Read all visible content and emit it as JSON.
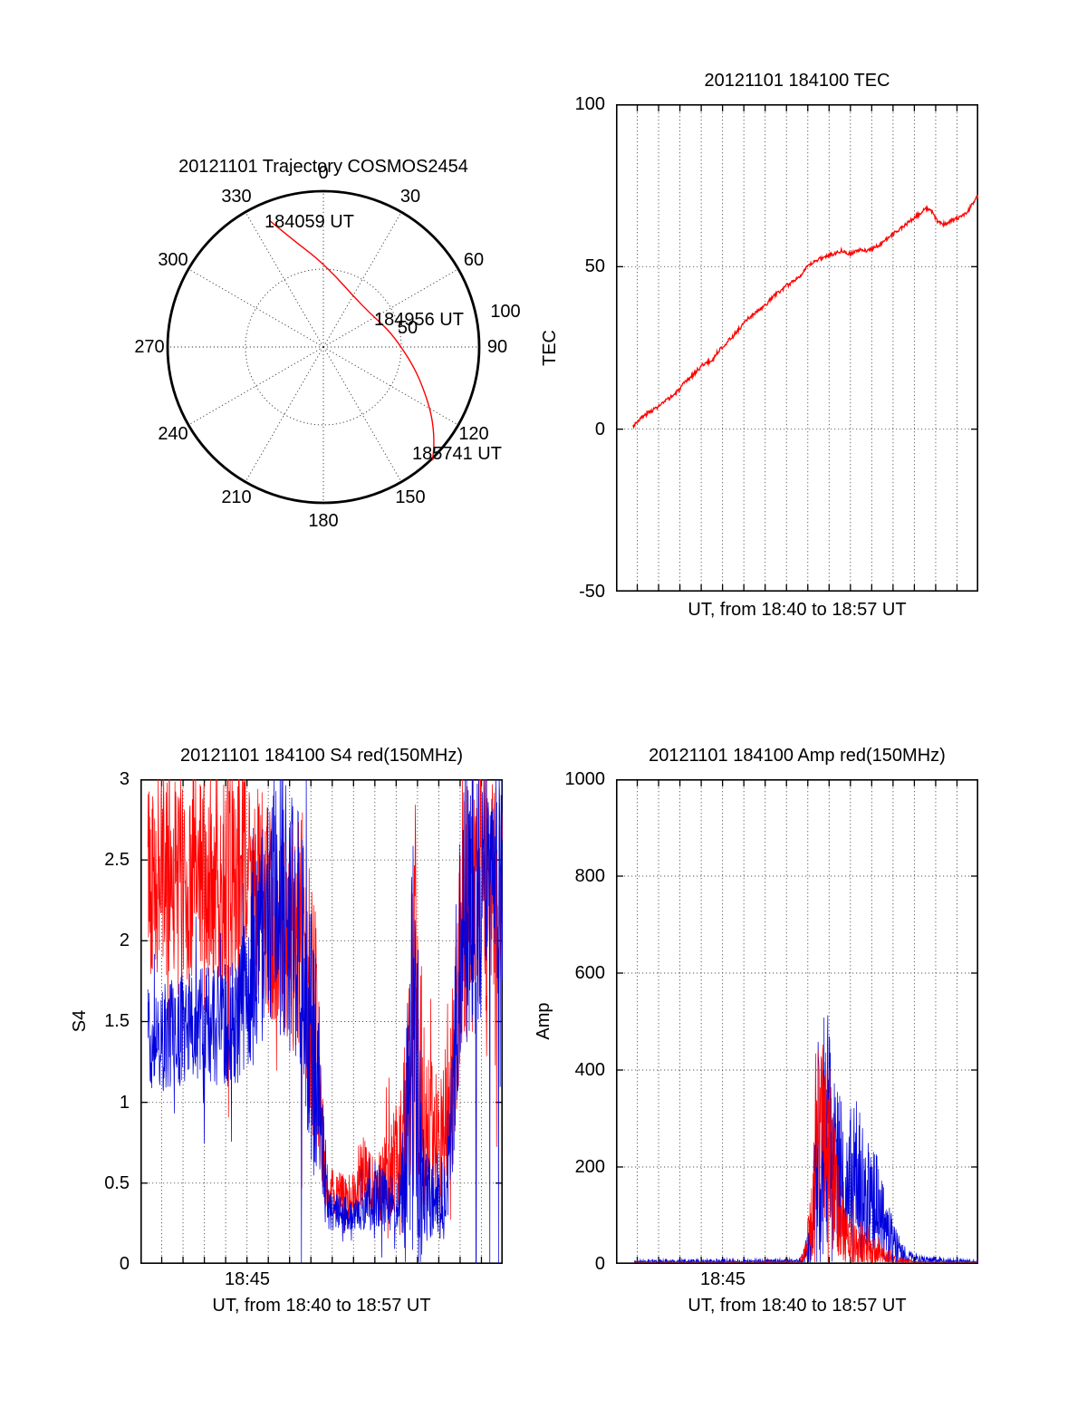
{
  "figure": {
    "background": "#ffffff"
  },
  "chart_data": [
    {
      "type": "polar-trajectory",
      "title": "20121101 Trajectory COSMOS2454",
      "azimuth_tick_labels": [
        "0",
        "30",
        "60",
        "90",
        "120",
        "150",
        "180",
        "210",
        "240",
        "270",
        "300",
        "330"
      ],
      "radial_tick_labels": [
        "50",
        "100"
      ],
      "annotations": [
        "184059 UT",
        "184956 UT",
        "185741 UT"
      ],
      "line_color": "#ff0000",
      "points_az_deg_r": [
        [
          337,
          0.88
        ],
        [
          345,
          0.7
        ],
        [
          355,
          0.58
        ],
        [
          10,
          0.46
        ],
        [
          30,
          0.38
        ],
        [
          55,
          0.37
        ],
        [
          75,
          0.43
        ],
        [
          90,
          0.5
        ],
        [
          103,
          0.6
        ],
        [
          113,
          0.7
        ],
        [
          122,
          0.82
        ],
        [
          130,
          0.93
        ],
        [
          136,
          1.01
        ]
      ]
    },
    {
      "type": "line",
      "title": "20121101 184100 TEC",
      "ylabel": "TEC",
      "xlabel": "UT, from 18:40 to 18:57 UT",
      "ylim": [
        -50,
        100
      ],
      "yticks": [
        100,
        50,
        0,
        -50
      ],
      "ytick_labels": [
        "100",
        "50",
        "0",
        "-50"
      ],
      "x_axis": {
        "start": "18:40",
        "end": "18:57",
        "span_minutes": 17
      },
      "grid": true,
      "line_color": "#ff0000",
      "points": [
        [
          0.8,
          1
        ],
        [
          1.1,
          3
        ],
        [
          1.5,
          5
        ],
        [
          2,
          7
        ],
        [
          2.4,
          9
        ],
        [
          2.8,
          11
        ],
        [
          3.2,
          14
        ],
        [
          3.5,
          16
        ],
        [
          3.8,
          18
        ],
        [
          4.1,
          20
        ],
        [
          4.5,
          21
        ],
        [
          4.8,
          24
        ],
        [
          5.1,
          26
        ],
        [
          5.4,
          28
        ],
        [
          5.8,
          31
        ],
        [
          6.2,
          34
        ],
        [
          6.6,
          36
        ],
        [
          7,
          38
        ],
        [
          7.4,
          41
        ],
        [
          7.8,
          43
        ],
        [
          8.2,
          45
        ],
        [
          8.6,
          47
        ],
        [
          9,
          50
        ],
        [
          9.4,
          52
        ],
        [
          9.8,
          53
        ],
        [
          10.2,
          54
        ],
        [
          10.6,
          55
        ],
        [
          11,
          54
        ],
        [
          11.4,
          55
        ],
        [
          11.8,
          55
        ],
        [
          12.2,
          56
        ],
        [
          12.6,
          58
        ],
        [
          13,
          60
        ],
        [
          13.4,
          62
        ],
        [
          13.8,
          64
        ],
        [
          14.2,
          66
        ],
        [
          14.5,
          68
        ],
        [
          14.8,
          67
        ],
        [
          15.1,
          64
        ],
        [
          15.4,
          63
        ],
        [
          15.7,
          64
        ],
        [
          16.1,
          65
        ],
        [
          16.5,
          67
        ],
        [
          16.8,
          70
        ],
        [
          17,
          72
        ]
      ]
    },
    {
      "type": "line",
      "title": "20121101 184100 S4 red(150MHz)",
      "ylabel": "S4",
      "xlabel": "UT, from 18:40 to 18:57 UT",
      "ylim": [
        0,
        3
      ],
      "yticks": [
        3,
        2.5,
        2,
        1.5,
        1,
        0.5,
        0
      ],
      "ytick_labels": [
        "3",
        "2.5",
        "2",
        "1.5",
        "1",
        "0.5",
        "0"
      ],
      "x_axis": {
        "start": "18:40",
        "end": "18:57",
        "span_minutes": 17,
        "tick_label": "18:45",
        "tick_minute": 5
      },
      "grid": true,
      "series": [
        {
          "name": "red(150MHz)",
          "color": "#ff0000",
          "seed": 42,
          "data_start_minute": 0.35,
          "envelope_x_mean_amp": [
            [
              0,
              2.45,
              0.65
            ],
            [
              5.0,
              2.4,
              0.7
            ],
            [
              6.2,
              2.15,
              0.65
            ],
            [
              7.6,
              2.0,
              0.8
            ],
            [
              8.2,
              1.4,
              0.8
            ],
            [
              8.7,
              0.45,
              0.18
            ],
            [
              10.0,
              0.4,
              0.15
            ],
            [
              10.4,
              0.55,
              0.25
            ],
            [
              11.0,
              0.45,
              0.2
            ],
            [
              11.8,
              0.6,
              0.3
            ],
            [
              12.5,
              0.9,
              0.6
            ],
            [
              12.9,
              1.7,
              1.3
            ],
            [
              13.3,
              0.9,
              0.6
            ],
            [
              13.9,
              0.75,
              0.35
            ],
            [
              14.6,
              0.9,
              0.45
            ],
            [
              15.1,
              2.2,
              0.85
            ],
            [
              17,
              2.35,
              0.7
            ]
          ]
        },
        {
          "name": "blue",
          "color": "#0000dd",
          "seed": 77,
          "data_start_minute": 0.35,
          "envelope_x_mean_amp": [
            [
              0,
              1.4,
              0.32
            ],
            [
              4.6,
              1.5,
              0.4
            ],
            [
              5.6,
              2.0,
              0.75
            ],
            [
              6.6,
              2.2,
              0.8
            ],
            [
              7.5,
              2.0,
              0.9
            ],
            [
              8.2,
              1.2,
              0.8
            ],
            [
              8.8,
              0.33,
              0.12
            ],
            [
              10.3,
              0.3,
              0.1
            ],
            [
              11.0,
              0.42,
              0.22
            ],
            [
              12.2,
              0.35,
              0.15
            ],
            [
              12.9,
              1.4,
              1.6
            ],
            [
              13.3,
              0.45,
              0.3
            ],
            [
              14.4,
              0.4,
              0.25
            ],
            [
              15.1,
              2.2,
              0.9
            ],
            [
              17,
              2.35,
              0.75
            ]
          ],
          "dropouts": [
            7.55,
            15.75,
            16.4,
            16.8
          ]
        }
      ]
    },
    {
      "type": "line",
      "title": "20121101 184100 Amp red(150MHz)",
      "ylabel": "Amp",
      "xlabel": "UT, from 18:40 to 18:57 UT",
      "ylim": [
        0,
        1000
      ],
      "yticks": [
        1000,
        800,
        600,
        400,
        200,
        0
      ],
      "ytick_labels": [
        "1000",
        "800",
        "600",
        "400",
        "200",
        "0"
      ],
      "x_axis": {
        "start": "18:40",
        "end": "18:57",
        "span_minutes": 17,
        "tick_label": "18:45",
        "tick_minute": 5
      },
      "grid": true,
      "series": [
        {
          "name": "red(150MHz)",
          "color": "#ff0000",
          "seed": 5,
          "data_start_minute": 0.85,
          "envelope_x_mean_amp": [
            [
              0,
              2,
              2
            ],
            [
              8.6,
              3,
              3
            ],
            [
              8.9,
              25,
              25
            ],
            [
              9.2,
              90,
              90
            ],
            [
              9.5,
              230,
              230
            ],
            [
              9.8,
              280,
              210
            ],
            [
              10.1,
              200,
              180
            ],
            [
              10.5,
              90,
              90
            ],
            [
              11.0,
              45,
              55
            ],
            [
              11.8,
              35,
              45
            ],
            [
              12.5,
              20,
              28
            ],
            [
              13.1,
              8,
              10
            ],
            [
              13.8,
              4,
              5
            ],
            [
              14.5,
              2,
              3
            ],
            [
              17,
              2,
              2
            ]
          ]
        },
        {
          "name": "blue",
          "color": "#0000dd",
          "seed": 9,
          "data_start_minute": 0.85,
          "envelope_x_mean_amp": [
            [
              0,
              4,
              4
            ],
            [
              8.7,
              5,
              5
            ],
            [
              9.2,
              50,
              60
            ],
            [
              9.5,
              260,
              270
            ],
            [
              9.9,
              290,
              250
            ],
            [
              10.3,
              210,
              170
            ],
            [
              10.8,
              170,
              150
            ],
            [
              11.2,
              210,
              140
            ],
            [
              11.7,
              160,
              130
            ],
            [
              12.2,
              130,
              110
            ],
            [
              12.7,
              70,
              70
            ],
            [
              13.2,
              30,
              35
            ],
            [
              13.8,
              12,
              14
            ],
            [
              14.5,
              7,
              7
            ],
            [
              17,
              4,
              4
            ]
          ]
        }
      ]
    }
  ]
}
